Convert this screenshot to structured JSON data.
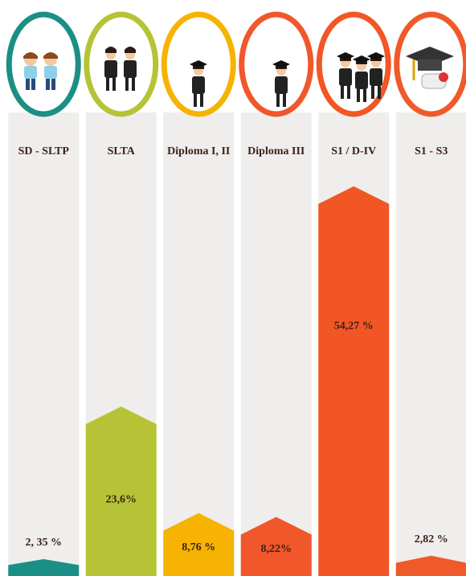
{
  "chart_data": {
    "type": "bar",
    "categories": [
      "SD - SLTP",
      "SLTA",
      "Diploma I, II",
      "Diploma III",
      "S1 / D-IV",
      "S1 - S3"
    ],
    "values": [
      2.35,
      23.6,
      8.76,
      8.22,
      54.27,
      2.82
    ],
    "value_labels": [
      "2, 35 %",
      "23,6%",
      "8,76 %",
      "8,22%",
      "54,27 %",
      "2,82 %"
    ],
    "colors": [
      "#1b8f85",
      "#b6c336",
      "#f6b301",
      "#f0572b",
      "#f25624",
      "#f05a2a"
    ]
  }
}
